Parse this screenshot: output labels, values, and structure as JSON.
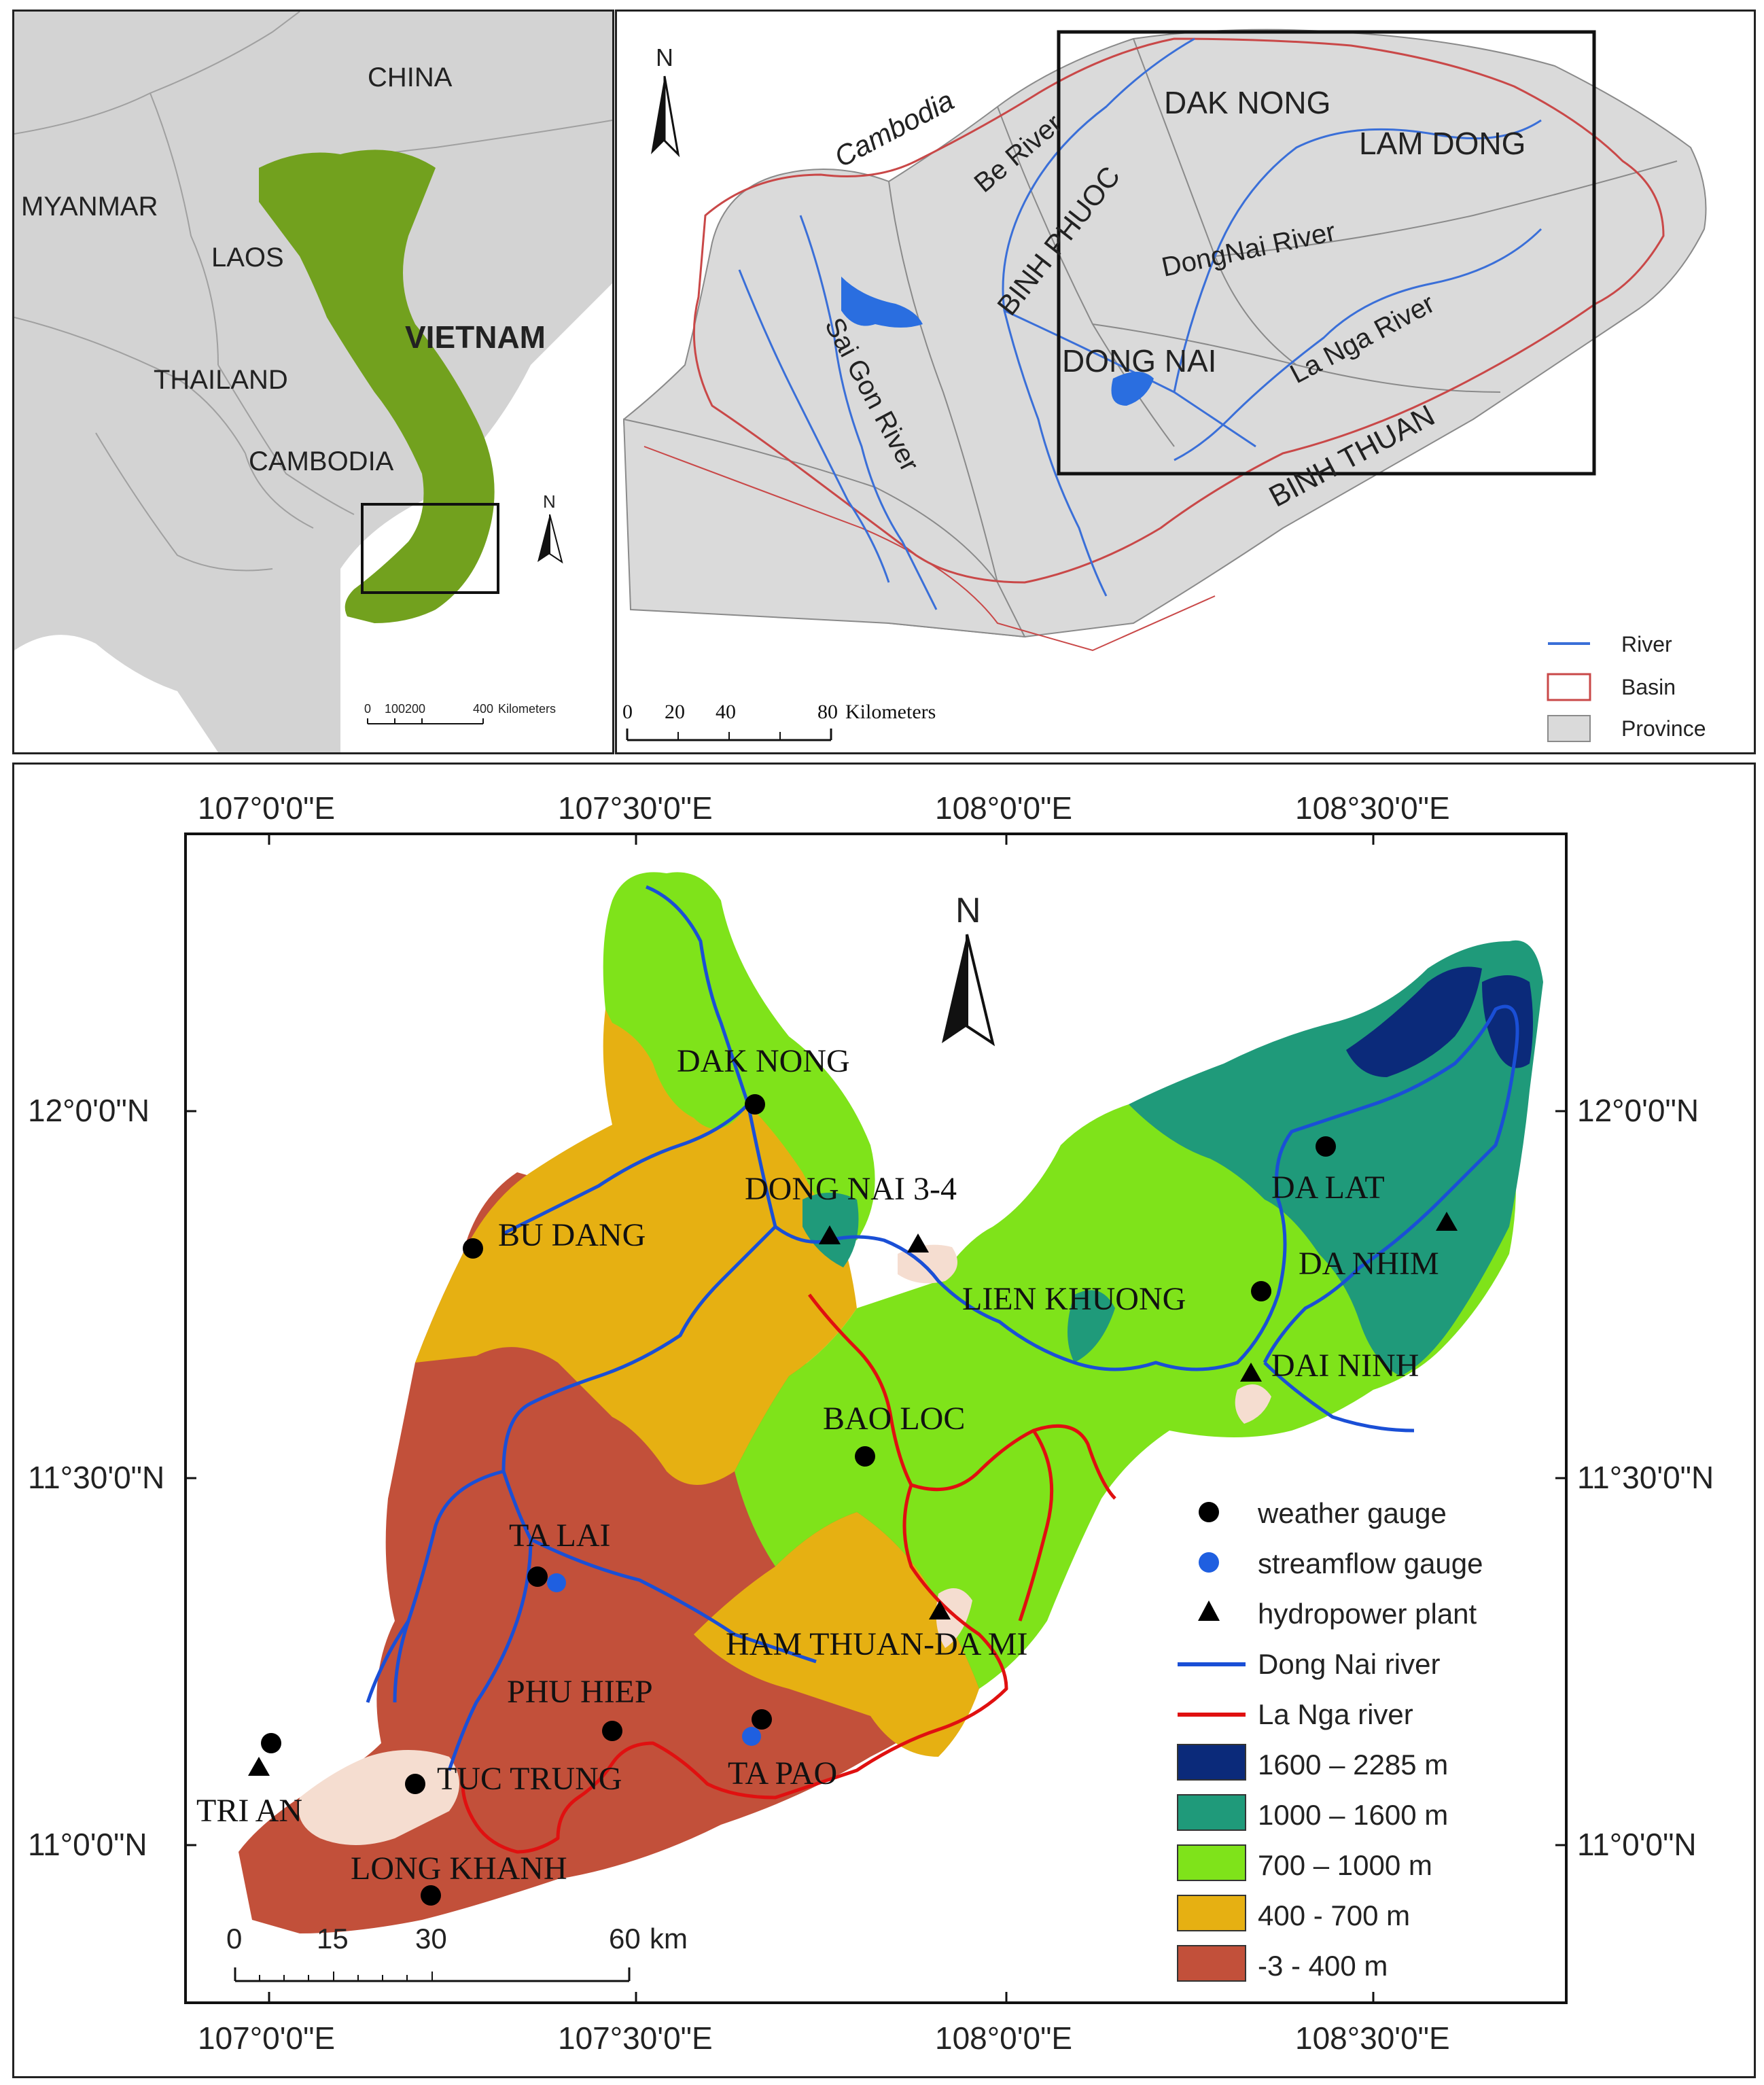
{
  "panel_a": {
    "countries": [
      "CHINA",
      "MYANMAR",
      "LAOS",
      "VIETNAM",
      "THAILAND",
      "CAMBODIA"
    ],
    "north": "N",
    "scale": {
      "ticks": [
        "0",
        "100200",
        "400"
      ],
      "unit": "Kilometers"
    },
    "colors": {
      "land": "#d3d3d3",
      "vietnam": "#72a11e",
      "border": "#999999"
    }
  },
  "panel_b": {
    "labels": {
      "cambodia": "Cambodia",
      "be_river": "Be River",
      "dak_nong": "DAK NONG",
      "lam_dong": "LAM DONG",
      "binh_phuoc": "BINH PHUOC",
      "dongnai_river": "DongNai River",
      "la_nga_river": "La Nga River",
      "sai_gon_river": "Sai Gon River",
      "dong_nai": "DONG NAI",
      "binh_thuan": "BINH THUAN"
    },
    "north": "N",
    "scale": {
      "ticks": [
        "0",
        "20",
        "40",
        "80"
      ],
      "unit": "Kilometers"
    },
    "legend": [
      "River",
      "Basin",
      "Province"
    ],
    "colors": {
      "river": "#3a6fd8",
      "basin": "#c94848",
      "province": "#dadada"
    }
  },
  "panel_c": {
    "top_ticks": [
      "107°0'0\"E",
      "107°30'0\"E",
      "108°0'0\"E",
      "108°30'0\"E"
    ],
    "bottom_ticks": [
      "107°0'0\"E",
      "107°30'0\"E",
      "108°0'0\"E",
      "108°30'0\"E"
    ],
    "left_ticks": [
      "12°0'0\"N",
      "11°30'0\"N",
      "11°0'0\"N"
    ],
    "right_ticks": [
      "12°0'0\"N",
      "11°30'0\"N",
      "11°0'0\"N"
    ],
    "north": "N",
    "stations": [
      {
        "name": "DAK NONG"
      },
      {
        "name": "DONG NAI 3-4"
      },
      {
        "name": "BU DANG"
      },
      {
        "name": "DA LAT"
      },
      {
        "name": "DA NHIM"
      },
      {
        "name": "LIEN KHUONG"
      },
      {
        "name": "DAI NINH"
      },
      {
        "name": "BAO LOC"
      },
      {
        "name": "TA LAI"
      },
      {
        "name": "HAM THUAN-DA MI"
      },
      {
        "name": "PHU HIEP"
      },
      {
        "name": "TRI AN"
      },
      {
        "name": "TUC TRUNG"
      },
      {
        "name": "TA PAO"
      },
      {
        "name": "LONG KHANH"
      }
    ],
    "legend": {
      "symbols": [
        "weather gauge",
        "streamflow gauge",
        "hydropower plant",
        "Dong Nai river",
        "La Nga river"
      ],
      "elevation": [
        {
          "label": "1600 – 2285 m",
          "color": "#0b2a7a"
        },
        {
          "label": "1000 – 1600 m",
          "color": "#1f9a7a"
        },
        {
          "label": "700 – 1000 m",
          "color": "#7fe31a"
        },
        {
          "label": "400 - 700 m",
          "color": "#e6b012"
        },
        {
          "label": "-3 - 400 m",
          "color": "#c2503a"
        }
      ]
    },
    "scale": {
      "ticks": [
        "0",
        "15",
        "30",
        "60"
      ],
      "unit": "km"
    },
    "colors": {
      "dong_nai_river": "#1a4fd6",
      "la_nga_river": "#e01010",
      "lake": "#f5ddd0",
      "weather": "#000000",
      "streamflow": "#1f5fe0"
    }
  }
}
